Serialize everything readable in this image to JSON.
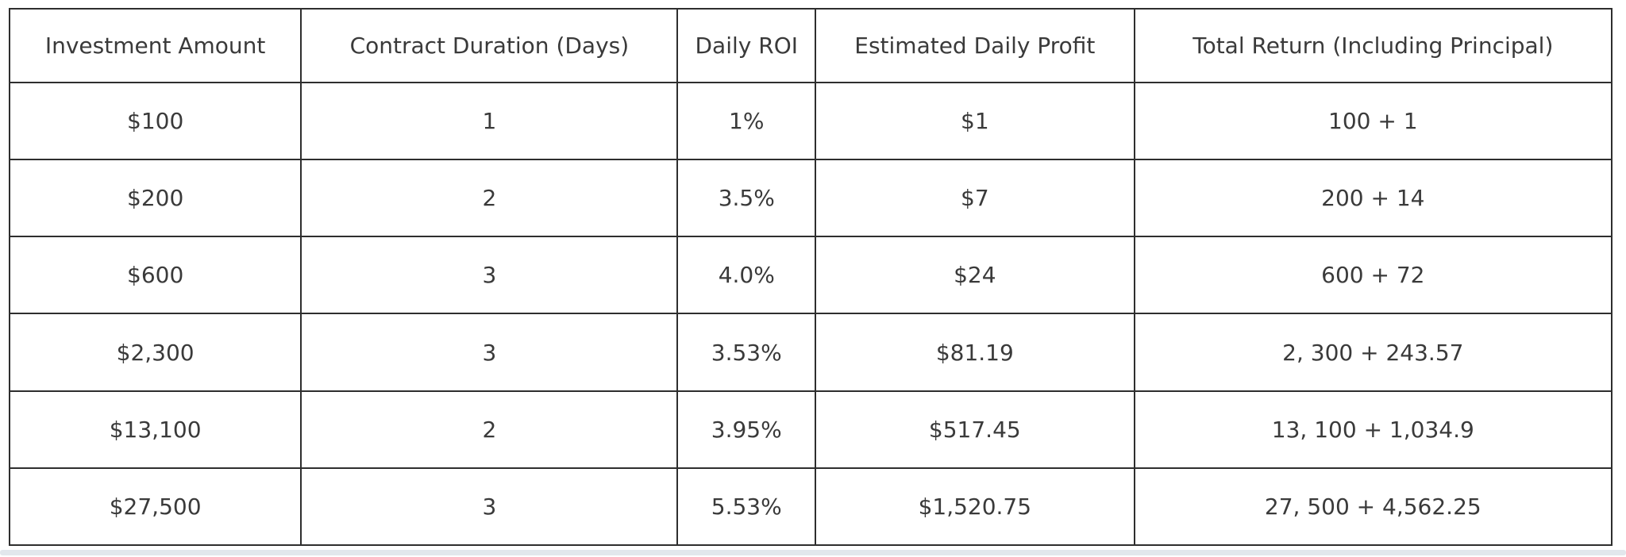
{
  "table": {
    "headers": [
      "Investment Amount",
      "Contract Duration (Days)",
      "Daily ROI",
      "Estimated Daily Profit",
      "Total Return (Including Principal)"
    ],
    "rows": [
      [
        "$100",
        "1",
        "1%",
        "$1",
        "100 + 1"
      ],
      [
        "$200",
        "2",
        "3.5%",
        "$7",
        "200 + 14"
      ],
      [
        "$600",
        "3",
        "4.0%",
        "$24",
        "600 + 72"
      ],
      [
        "$2,300",
        "3",
        "3.53%",
        "$81.19",
        "2, 300 + 243.57"
      ],
      [
        "$13,100",
        "2",
        "3.95%",
        "$517.45",
        "13, 100 + 1,034.9"
      ],
      [
        "$27,500",
        "3",
        "5.53%",
        "$1,520.75",
        "27, 500 + 4,562.25"
      ]
    ]
  },
  "colors": {
    "border": "#2e2e2e",
    "text": "#3a3a3a",
    "background": "#ffffff",
    "bottom_bar": "#e2e7ec"
  }
}
